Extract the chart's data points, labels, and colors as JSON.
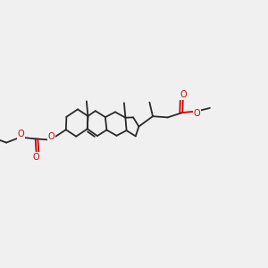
{
  "background_color": "#f0f0f0",
  "bond_color": "#2a2a2a",
  "oxygen_color": "#cc0000",
  "line_width": 1.3,
  "figsize": [
    3.0,
    3.0
  ],
  "dpi": 100,
  "xlim": [
    0.0,
    1.0
  ],
  "ylim": [
    0.18,
    0.88
  ]
}
